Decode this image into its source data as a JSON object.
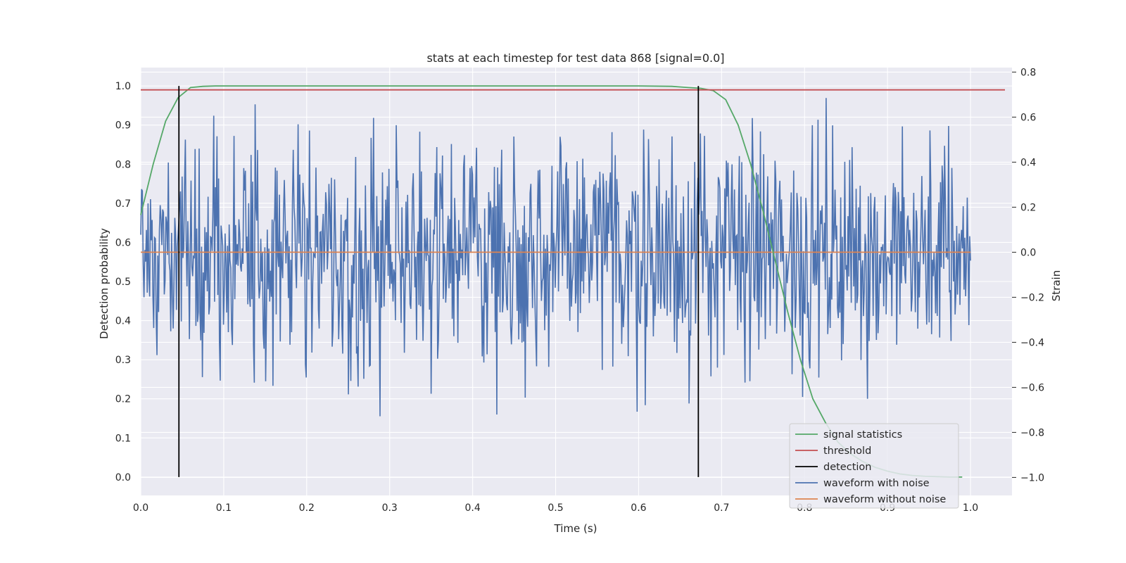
{
  "chart_data": {
    "type": "line",
    "title": "stats at each timestep for test data 868 [signal=0.0]",
    "xlabel": "Time (s)",
    "ylabel_left": "Detection probability",
    "ylabel_right": "Strain",
    "xlim": [
      0.0,
      1.05
    ],
    "ylim_left": [
      -0.047,
      1.047
    ],
    "ylim_right": [
      -1.08,
      0.82
    ],
    "x_ticks": [
      "0.0",
      "0.1",
      "0.2",
      "0.3",
      "0.4",
      "0.5",
      "0.6",
      "0.7",
      "0.8",
      "0.9",
      "1.0"
    ],
    "x_tick_values": [
      0.0,
      0.1,
      0.2,
      0.3,
      0.4,
      0.5,
      0.6,
      0.7,
      0.8,
      0.9,
      1.0
    ],
    "y_left_ticks": [
      "0.0",
      "0.1",
      "0.2",
      "0.3",
      "0.4",
      "0.5",
      "0.6",
      "0.7",
      "0.8",
      "0.9",
      "1.0"
    ],
    "y_left_tick_values": [
      0.0,
      0.1,
      0.2,
      0.3,
      0.4,
      0.5,
      0.6,
      0.7,
      0.8,
      0.9,
      1.0
    ],
    "y_right_ticks": [
      "−1.0",
      "−0.8",
      "−0.6",
      "−0.4",
      "−0.2",
      "0.0",
      "0.2",
      "0.4",
      "0.6",
      "0.8"
    ],
    "y_right_tick_values": [
      -1.0,
      -0.8,
      -0.6,
      -0.4,
      -0.2,
      0.0,
      0.2,
      0.4,
      0.6,
      0.8
    ],
    "grid": true,
    "legend_position": "lower-right",
    "series": [
      {
        "name": "signal statistics",
        "axis": "left",
        "color": "#55a868",
        "x": [
          0.0,
          0.015,
          0.03,
          0.045,
          0.06,
          0.075,
          0.09,
          0.12,
          0.2,
          0.3,
          0.4,
          0.5,
          0.6,
          0.64,
          0.66,
          0.675,
          0.69,
          0.705,
          0.72,
          0.735,
          0.75,
          0.765,
          0.78,
          0.795,
          0.81,
          0.825,
          0.84,
          0.855,
          0.87,
          0.885,
          0.9,
          0.915,
          0.93,
          0.945,
          0.96,
          0.975,
          0.99
        ],
        "y": [
          0.67,
          0.8,
          0.91,
          0.97,
          0.996,
          0.999,
          1.0,
          1.0,
          1.0,
          1.0,
          1.0,
          1.0,
          1.0,
          0.999,
          0.996,
          0.994,
          0.988,
          0.965,
          0.9,
          0.8,
          0.68,
          0.55,
          0.42,
          0.3,
          0.2,
          0.14,
          0.09,
          0.06,
          0.04,
          0.025,
          0.015,
          0.008,
          0.004,
          0.002,
          0.001,
          0.0,
          0.0
        ]
      },
      {
        "name": "threshold",
        "axis": "left",
        "color": "#c44e52",
        "value": 0.99
      },
      {
        "name": "detection",
        "axis": "left",
        "color": "#000000",
        "x": [
          0.046,
          0.672
        ],
        "y_range": [
          0.0,
          1.0
        ]
      },
      {
        "name": "waveform with noise",
        "axis": "right",
        "color": "#4c72b0",
        "x_range": [
          0.0,
          1.0
        ],
        "n_points": 1024,
        "mean": 0.0,
        "std": 0.25,
        "min": -1.0,
        "max": 0.81
      },
      {
        "name": "waveform without noise",
        "axis": "right",
        "color": "#dd8452",
        "value": 0.0,
        "x_range": [
          0.0,
          1.0
        ]
      }
    ]
  }
}
